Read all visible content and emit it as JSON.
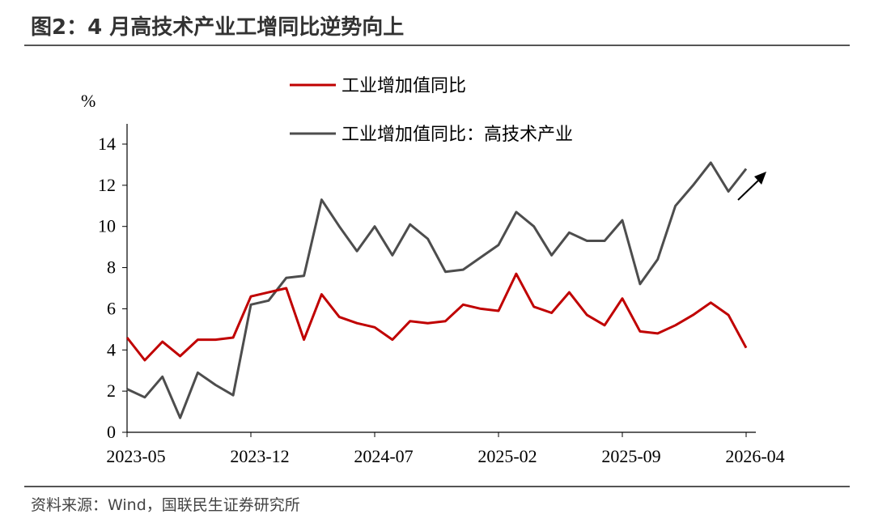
{
  "chart_data": {
    "type": "line",
    "title": "图2：4 月高技术产业工增同比逆势向上",
    "y_label": "%",
    "source": "资料来源：Wind，国联民生证券研究所",
    "x": [
      "2023-05",
      "2023-06",
      "2023-07",
      "2023-08",
      "2023-09",
      "2023-10",
      "2023-11",
      "2023-12",
      "2024-01",
      "2024-02",
      "2024-03",
      "2024-04",
      "2024-05",
      "2024-06",
      "2024-07",
      "2024-08",
      "2024-09",
      "2024-10",
      "2024-11",
      "2024-12",
      "2025-01",
      "2025-02",
      "2025-03",
      "2025-04",
      "2025-05",
      "2025-06",
      "2025-07",
      "2025-08",
      "2025-09",
      "2025-10",
      "2025-11",
      "2025-12",
      "2026-01",
      "2026-02",
      "2026-03",
      "2026-04"
    ],
    "xticks": [
      "2023-05",
      "2023-12",
      "2024-07",
      "2025-02",
      "2025-09",
      "2026-04"
    ],
    "series": [
      {
        "name": "工业增加值同比",
        "color": "#c00000",
        "values": [
          4.6,
          3.5,
          4.4,
          3.7,
          4.5,
          4.5,
          4.6,
          6.6,
          6.8,
          7.0,
          4.5,
          6.7,
          5.6,
          5.3,
          5.1,
          4.5,
          5.4,
          5.3,
          5.4,
          6.2,
          6.0,
          5.9,
          7.7,
          6.1,
          5.8,
          6.8,
          5.7,
          5.2,
          6.5,
          4.9,
          4.8,
          5.2,
          5.7,
          6.3,
          5.7,
          4.1
        ]
      },
      {
        "name": "工业增加值同比：高技术产业",
        "color": "#4d4d4d",
        "values": [
          2.1,
          1.7,
          2.7,
          0.7,
          2.9,
          2.3,
          1.8,
          6.2,
          6.4,
          7.5,
          7.6,
          11.3,
          10.0,
          8.8,
          10.0,
          8.6,
          10.1,
          9.4,
          7.8,
          7.9,
          8.5,
          9.1,
          10.7,
          10.0,
          8.6,
          9.7,
          9.3,
          9.3,
          10.3,
          7.2,
          8.4,
          11.0,
          12.0,
          13.1,
          11.7,
          12.8
        ]
      }
    ],
    "ylim": [
      0,
      14
    ],
    "yticks": [
      0,
      2,
      4,
      6,
      8,
      10,
      12,
      14
    ]
  }
}
